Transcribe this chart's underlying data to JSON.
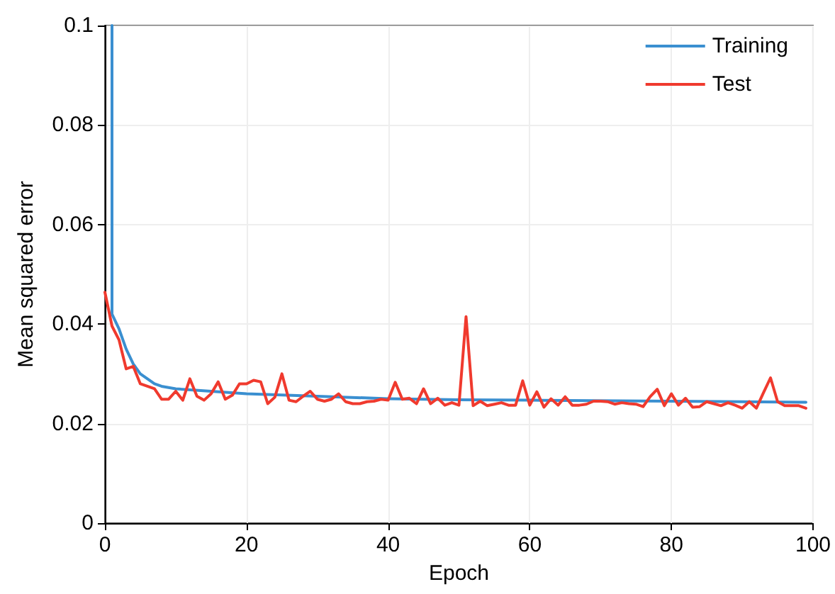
{
  "chart_data": {
    "type": "line",
    "xlabel": "Epoch",
    "ylabel": "Mean squared error",
    "xlim": [
      0,
      100
    ],
    "xticks": [
      0,
      20,
      40,
      60,
      80,
      100
    ],
    "ylim": [
      0,
      0.1
    ],
    "yticks": [
      0,
      0.02,
      0.04,
      0.06,
      0.08,
      0.1
    ],
    "grid": true,
    "legend": "top right",
    "marker": "none",
    "line_style": "solid",
    "series": [
      {
        "name": "Training",
        "color": "#3a8fd0",
        "x": [
          1,
          1,
          2,
          3,
          4,
          5,
          6,
          7,
          8,
          10,
          15,
          20,
          30,
          40,
          50,
          60,
          80,
          99
        ],
        "values": [
          0.1,
          0.042,
          0.039,
          0.035,
          0.032,
          0.03,
          0.029,
          0.028,
          0.0275,
          0.027,
          0.0265,
          0.026,
          0.0255,
          0.025,
          0.0248,
          0.0247,
          0.0245,
          0.0243
        ]
      },
      {
        "name": "Test",
        "color": "#f03a2e",
        "x": [
          0,
          1,
          2,
          3,
          4,
          5,
          6,
          7,
          8,
          9,
          10,
          11,
          12,
          13,
          14,
          15,
          16,
          17,
          18,
          19,
          20,
          21,
          22,
          23,
          24,
          25,
          26,
          27,
          28,
          29,
          30,
          31,
          32,
          33,
          34,
          35,
          36,
          37,
          38,
          39,
          40,
          41,
          42,
          43,
          44,
          45,
          46,
          47,
          48,
          49,
          50,
          51,
          52,
          53,
          54,
          55,
          56,
          57,
          58,
          59,
          60,
          61,
          62,
          63,
          64,
          65,
          66,
          67,
          68,
          69,
          70,
          71,
          72,
          73,
          74,
          75,
          76,
          77,
          78,
          79,
          80,
          81,
          82,
          83,
          84,
          85,
          86,
          87,
          88,
          89,
          90,
          91,
          92,
          93,
          94,
          95,
          96,
          97,
          98,
          99
        ],
        "values": [
          0.0464,
          0.0396,
          0.0368,
          0.031,
          0.0315,
          0.028,
          0.0275,
          0.027,
          0.0249,
          0.0249,
          0.0265,
          0.0247,
          0.029,
          0.0255,
          0.0247,
          0.026,
          0.0284,
          0.0249,
          0.0257,
          0.028,
          0.028,
          0.0287,
          0.0284,
          0.024,
          0.0253,
          0.03,
          0.0247,
          0.0244,
          0.0255,
          0.0265,
          0.0249,
          0.0245,
          0.0249,
          0.026,
          0.0244,
          0.024,
          0.024,
          0.0244,
          0.0245,
          0.0249,
          0.0247,
          0.0283,
          0.0249,
          0.0251,
          0.024,
          0.027,
          0.024,
          0.0251,
          0.0237,
          0.0242,
          0.0237,
          0.0415,
          0.0236,
          0.0245,
          0.0236,
          0.0239,
          0.0242,
          0.0237,
          0.0237,
          0.0286,
          0.0237,
          0.0264,
          0.0233,
          0.025,
          0.0237,
          0.0254,
          0.0237,
          0.0237,
          0.0239,
          0.0245,
          0.0245,
          0.0244,
          0.0239,
          0.0242,
          0.024,
          0.0239,
          0.0234,
          0.0254,
          0.0269,
          0.0236,
          0.026,
          0.0237,
          0.0251,
          0.0233,
          0.0234,
          0.0244,
          0.024,
          0.0236,
          0.0242,
          0.0237,
          0.0231,
          0.0244,
          0.0231,
          0.0262,
          0.0292,
          0.0244,
          0.0236,
          0.0236,
          0.0236,
          0.0231
        ]
      }
    ]
  }
}
